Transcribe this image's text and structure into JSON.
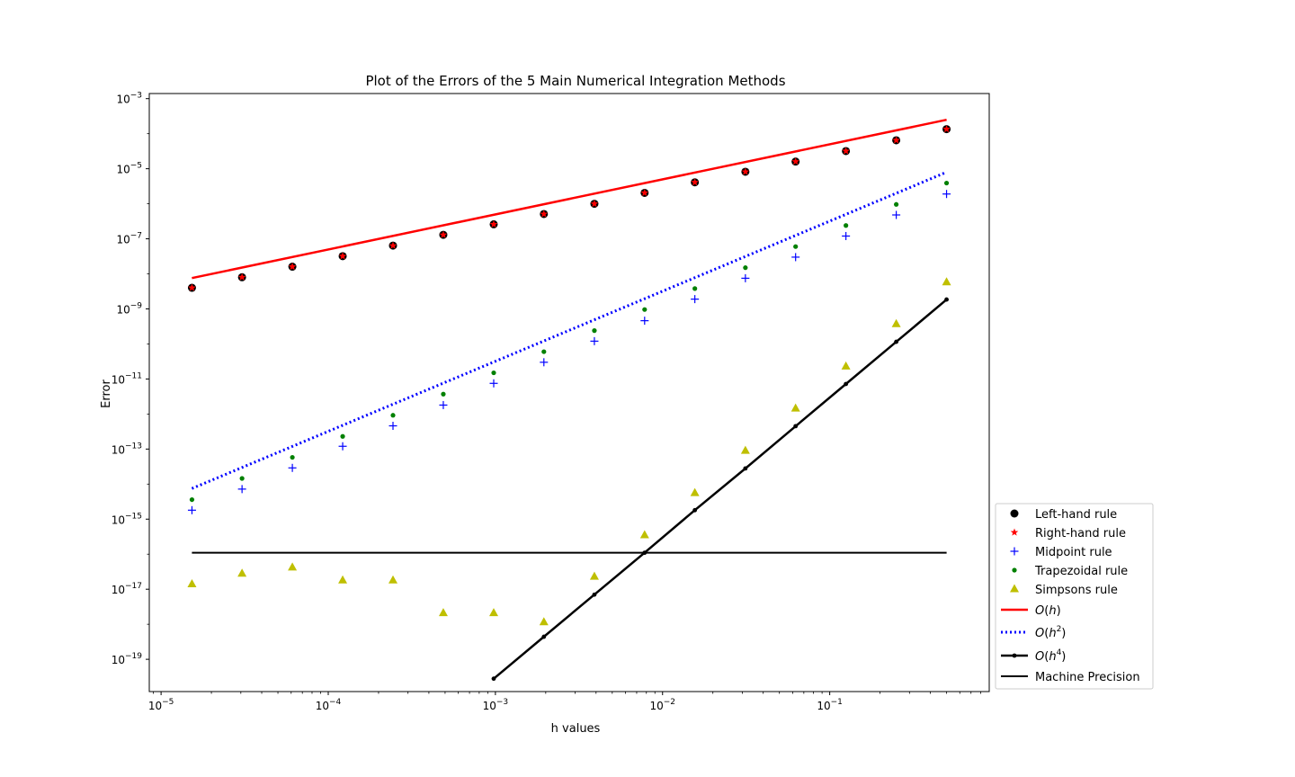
{
  "chart_data": {
    "type": "scatter",
    "title": "Plot of the Errors of the 5 Main Numerical Integration Methods",
    "xlabel": "h values",
    "ylabel": "Error",
    "xscale": "log",
    "yscale": "log",
    "xlim": [
      8.5e-06,
      0.9
    ],
    "ylim": [
      1.2e-20,
      0.0014
    ],
    "grid": false,
    "legend_position": "lower-right",
    "x_ticks": [
      {
        "value": 1e-05,
        "base": "10",
        "exp": "−5"
      },
      {
        "value": 0.0001,
        "base": "10",
        "exp": "−4"
      },
      {
        "value": 0.001,
        "base": "10",
        "exp": "−3"
      },
      {
        "value": 0.01,
        "base": "10",
        "exp": "−2"
      },
      {
        "value": 0.1,
        "base": "10",
        "exp": "−1"
      }
    ],
    "y_ticks": [
      {
        "value": 1e-19,
        "base": "10",
        "exp": "−19"
      },
      {
        "value": 1e-17,
        "base": "10",
        "exp": "−17"
      },
      {
        "value": 1e-15,
        "base": "10",
        "exp": "−15"
      },
      {
        "value": 1e-13,
        "base": "10",
        "exp": "−13"
      },
      {
        "value": 1e-11,
        "base": "10",
        "exp": "−11"
      },
      {
        "value": 1e-09,
        "base": "10",
        "exp": "−9"
      },
      {
        "value": 1e-07,
        "base": "10",
        "exp": "−7"
      },
      {
        "value": 1e-05,
        "base": "10",
        "exp": "−5"
      },
      {
        "value": 0.001,
        "base": "10",
        "exp": "−3"
      }
    ],
    "series": [
      {
        "name": "Left-hand rule",
        "marker": "circle",
        "color": "#000000",
        "line": "none",
        "points": [
          [
            1.53e-05,
            4e-09
          ],
          [
            3.05e-05,
            8e-09
          ],
          [
            6.1e-05,
            1.6e-08
          ],
          [
            0.000122,
            3.2e-08
          ],
          [
            0.000244,
            6.4e-08
          ],
          [
            0.000488,
            1.3e-07
          ],
          [
            0.000977,
            2.6e-07
          ],
          [
            0.00195,
            5.1e-07
          ],
          [
            0.00391,
            1e-06
          ],
          [
            0.00781,
            2.05e-06
          ],
          [
            0.0156,
            4.1e-06
          ],
          [
            0.0313,
            8.2e-06
          ],
          [
            0.0625,
            1.6e-05
          ],
          [
            0.125,
            3.2e-05
          ],
          [
            0.25,
            6.5e-05
          ],
          [
            0.5,
            0.000135
          ]
        ]
      },
      {
        "name": "Right-hand rule",
        "marker": "star",
        "color": "#ff0000",
        "line": "none",
        "points": [
          [
            1.53e-05,
            4e-09
          ],
          [
            3.05e-05,
            8e-09
          ],
          [
            6.1e-05,
            1.6e-08
          ],
          [
            0.000122,
            3.2e-08
          ],
          [
            0.000244,
            6.4e-08
          ],
          [
            0.000488,
            1.3e-07
          ],
          [
            0.000977,
            2.6e-07
          ],
          [
            0.00195,
            5.1e-07
          ],
          [
            0.00391,
            1e-06
          ],
          [
            0.00781,
            2.05e-06
          ],
          [
            0.0156,
            4.1e-06
          ],
          [
            0.0313,
            8.2e-06
          ],
          [
            0.0625,
            1.6e-05
          ],
          [
            0.125,
            3.2e-05
          ],
          [
            0.25,
            6.5e-05
          ],
          [
            0.5,
            0.000135
          ]
        ]
      },
      {
        "name": "Midpoint rule",
        "marker": "plus",
        "color": "#0000ff",
        "line": "none",
        "points": [
          [
            1.53e-05,
            1.8e-15
          ],
          [
            3.05e-05,
            7.2e-15
          ],
          [
            6.1e-05,
            2.9e-14
          ],
          [
            0.000122,
            1.2e-13
          ],
          [
            0.000244,
            4.6e-13
          ],
          [
            0.000488,
            1.8e-12
          ],
          [
            0.000977,
            7.5e-12
          ],
          [
            0.00195,
            3e-11
          ],
          [
            0.00391,
            1.2e-10
          ],
          [
            0.00781,
            4.6e-10
          ],
          [
            0.0156,
            1.9e-09
          ],
          [
            0.0313,
            7.5e-09
          ],
          [
            0.0625,
            3e-08
          ],
          [
            0.125,
            1.2e-07
          ],
          [
            0.25,
            4.8e-07
          ],
          [
            0.5,
            1.9e-06
          ]
        ]
      },
      {
        "name": "Trapezoidal rule",
        "marker": "dot",
        "color": "#008000",
        "line": "none",
        "points": [
          [
            1.53e-05,
            3.6e-15
          ],
          [
            3.05e-05,
            1.45e-14
          ],
          [
            6.1e-05,
            5.8e-14
          ],
          [
            0.000122,
            2.3e-13
          ],
          [
            0.000244,
            9.2e-13
          ],
          [
            0.000488,
            3.7e-12
          ],
          [
            0.000977,
            1.5e-11
          ],
          [
            0.00195,
            6e-11
          ],
          [
            0.00391,
            2.4e-10
          ],
          [
            0.00781,
            9.6e-10
          ],
          [
            0.0156,
            3.8e-09
          ],
          [
            0.0313,
            1.5e-08
          ],
          [
            0.0625,
            6e-08
          ],
          [
            0.125,
            2.4e-07
          ],
          [
            0.25,
            9.6e-07
          ],
          [
            0.5,
            3.9e-06
          ]
        ]
      },
      {
        "name": "Simpsons rule",
        "marker": "triangle",
        "color": "#bfbf00",
        "line": "none",
        "points": [
          [
            1.53e-05,
            1.4e-17
          ],
          [
            3.05e-05,
            2.8e-17
          ],
          [
            6.1e-05,
            4.2e-17
          ],
          [
            0.000122,
            1.8e-17
          ],
          [
            0.000244,
            1.8e-17
          ],
          [
            0.000488,
            2.1e-18
          ],
          [
            0.000977,
            2.1e-18
          ],
          [
            0.00195,
            1.15e-18
          ],
          [
            0.00391,
            2.3e-17
          ],
          [
            0.00781,
            3.5e-16
          ],
          [
            0.0156,
            5.6e-15
          ],
          [
            0.0313,
            9e-14
          ],
          [
            0.0625,
            1.45e-12
          ],
          [
            0.125,
            2.3e-11
          ],
          [
            0.25,
            3.7e-10
          ],
          [
            0.5,
            5.8e-09
          ]
        ]
      },
      {
        "name": "O(h)",
        "name_html": "O(h)",
        "marker": "none",
        "color": "#ff0000",
        "line": "solid",
        "width": 2.5,
        "points": [
          [
            1.53e-05,
            7.6e-09
          ],
          [
            0.5,
            0.00025
          ]
        ]
      },
      {
        "name": "O(h2)",
        "name_html": "O(h2)",
        "marker": "none",
        "color": "#0000ff",
        "line": "dotted",
        "width": 3,
        "points": [
          [
            1.53e-05,
            7.5e-15
          ],
          [
            0.5,
            8e-06
          ]
        ]
      },
      {
        "name": "O(h4)",
        "name_html": "O(h4)",
        "marker": "smalldot",
        "color": "#000000",
        "line": "solid",
        "width": 2.5,
        "points": [
          [
            0.000977,
            2.8e-20
          ],
          [
            0.00195,
            4.4e-19
          ],
          [
            0.00391,
            7e-18
          ],
          [
            0.00781,
            1.1e-16
          ],
          [
            0.0156,
            1.8e-15
          ],
          [
            0.0313,
            2.8e-14
          ],
          [
            0.0625,
            4.5e-13
          ],
          [
            0.125,
            7.2e-12
          ],
          [
            0.25,
            1.15e-10
          ],
          [
            0.5,
            1.85e-09
          ]
        ]
      },
      {
        "name": "Machine Precision",
        "marker": "none",
        "color": "#000000",
        "line": "solid",
        "width": 2,
        "points": [
          [
            1.53e-05,
            1.1e-16
          ],
          [
            0.5,
            1.1e-16
          ]
        ]
      }
    ],
    "legend": [
      {
        "label": "Left-hand rule",
        "sup": ""
      },
      {
        "label": "Right-hand rule",
        "sup": ""
      },
      {
        "label": "Midpoint rule",
        "sup": ""
      },
      {
        "label": "Trapezoidal rule",
        "sup": ""
      },
      {
        "label": "Simpsons rule",
        "sup": ""
      },
      {
        "label": "O(h)",
        "pre": "O",
        "mid": "(",
        "var": "h",
        "sup": "",
        "post": ")"
      },
      {
        "label": "O(h2)",
        "pre": "O",
        "mid": "(",
        "var": "h",
        "sup": "2",
        "post": ")"
      },
      {
        "label": "O(h4)",
        "pre": "O",
        "mid": "(",
        "var": "h",
        "sup": "4",
        "post": ")"
      },
      {
        "label": "Machine Precision",
        "sup": ""
      }
    ]
  }
}
